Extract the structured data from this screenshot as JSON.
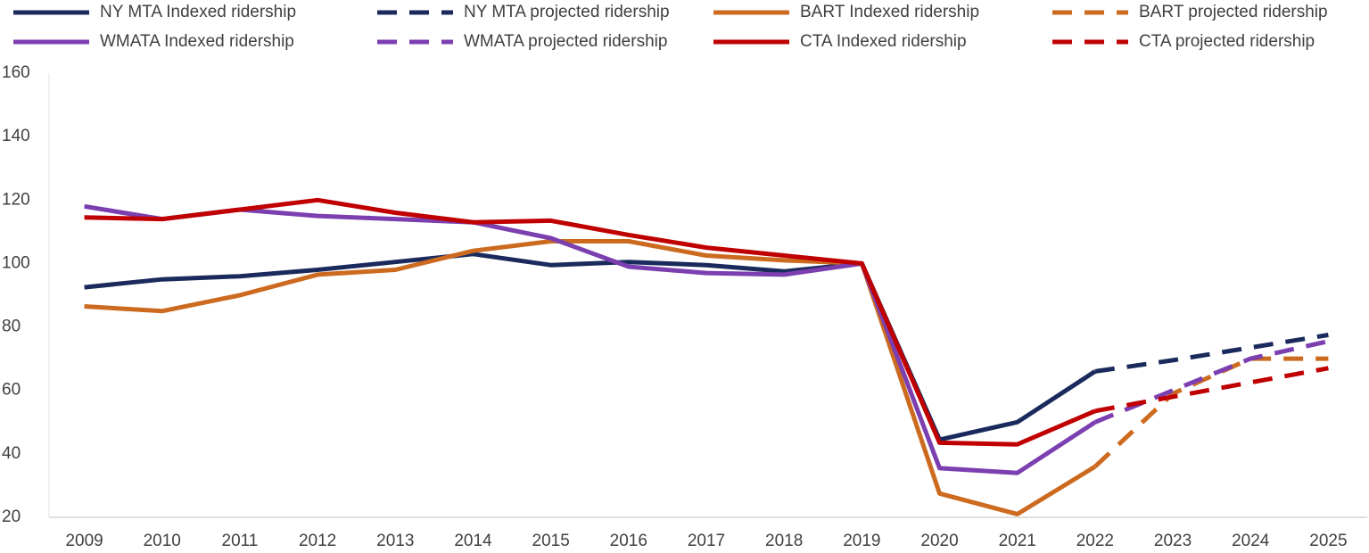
{
  "chart_data": {
    "type": "line",
    "categories": [
      "2009",
      "2010",
      "2011",
      "2012",
      "2013",
      "2014",
      "2015",
      "2016",
      "2017",
      "2018",
      "2019",
      "2020",
      "2021",
      "2022",
      "2023",
      "2024",
      "2025"
    ],
    "series": [
      {
        "name": "NY MTA Indexed ridership",
        "color": "#1b2a5c",
        "style": "solid",
        "values": [
          92.5,
          95,
          96,
          98,
          100.5,
          103,
          99.5,
          100.5,
          99.5,
          97.5,
          100,
          44.5,
          50,
          66,
          null,
          null,
          null
        ]
      },
      {
        "name": "NY MTA projected ridership",
        "color": "#1b2a5c",
        "style": "dashed",
        "values": [
          null,
          null,
          null,
          null,
          null,
          null,
          null,
          null,
          null,
          null,
          null,
          null,
          null,
          66,
          69.5,
          73.5,
          77.5
        ]
      },
      {
        "name": "BART Indexed ridership",
        "color": "#cc6a1f",
        "style": "solid",
        "values": [
          86.5,
          85,
          90,
          96.5,
          98,
          104,
          107,
          107,
          102.5,
          101,
          100,
          27.5,
          21,
          36,
          null,
          null,
          null
        ]
      },
      {
        "name": "BART projected ridership",
        "color": "#cc6a1f",
        "style": "dashed",
        "values": [
          null,
          null,
          null,
          null,
          null,
          null,
          null,
          null,
          null,
          null,
          null,
          null,
          null,
          36,
          59,
          70,
          70
        ]
      },
      {
        "name": "WMATA Indexed ridership",
        "color": "#7b3fb0",
        "style": "solid",
        "values": [
          118,
          114,
          117,
          115,
          114,
          113,
          108,
          99,
          97,
          96.5,
          100,
          35.5,
          34,
          50,
          null,
          null,
          null
        ]
      },
      {
        "name": "WMATA projected ridership",
        "color": "#7b3fb0",
        "style": "dashed",
        "values": [
          null,
          null,
          null,
          null,
          null,
          null,
          null,
          null,
          null,
          null,
          null,
          null,
          null,
          50,
          60,
          70,
          75.5
        ]
      },
      {
        "name": "CTA Indexed ridership",
        "color": "#c00000",
        "style": "solid",
        "values": [
          114.5,
          114,
          117,
          120,
          116,
          113,
          113.5,
          109,
          105,
          102.5,
          100,
          43.5,
          43,
          53.5,
          null,
          null,
          null
        ]
      },
      {
        "name": "CTA projected ridership",
        "color": "#c00000",
        "style": "dashed",
        "values": [
          null,
          null,
          null,
          null,
          null,
          null,
          null,
          null,
          null,
          null,
          null,
          null,
          null,
          53.5,
          58,
          62.5,
          67
        ]
      }
    ],
    "ylim": [
      20,
      160
    ],
    "yticks": [
      20,
      40,
      60,
      80,
      100,
      120,
      140,
      160
    ],
    "grid": false
  }
}
